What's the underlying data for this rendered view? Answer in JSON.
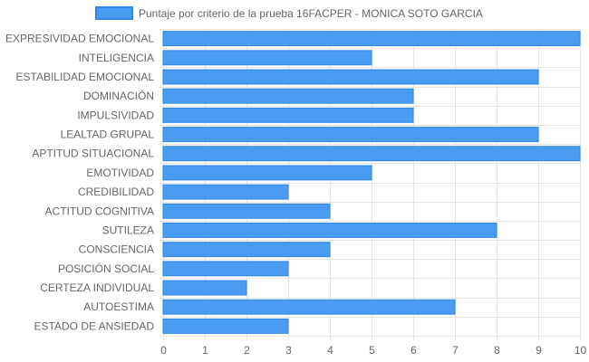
{
  "chart_data": {
    "type": "bar",
    "orientation": "horizontal",
    "categories": [
      "EXPRESIVIDAD EMOCIONAL",
      "INTELIGENCIA",
      "ESTABILIDAD EMOCIONAL",
      "DOMINACIÓN",
      "IMPULSIVIDAD",
      "LEALTAD GRUPAL",
      "APTITUD SITUACIONAL",
      "EMOTIVIDAD",
      "CREDIBILIDAD",
      "ACTITUD COGNITIVA",
      "SUTILEZA",
      "CONSCIENCIA",
      "POSICIÓN SOCIAL",
      "CERTEZA INDIVIDUAL",
      "AUTOESTIMA",
      "ESTADO DE ANSIEDAD"
    ],
    "series": [
      {
        "name": "Puntaje por criterio de la prueba 16FACPER - MONICA SOTO GARCIA",
        "values": [
          10,
          5,
          9,
          6,
          6,
          9,
          10,
          5,
          3,
          4,
          8,
          4,
          3,
          2,
          7,
          3
        ]
      }
    ],
    "xlim": [
      0,
      10
    ],
    "x_ticks": [
      "0",
      "1",
      "2",
      "3",
      "4",
      "5",
      "6",
      "7",
      "8",
      "9",
      "10"
    ],
    "legend_position": "top",
    "grid": true,
    "colors": {
      "bar_fill": "#4a9cf0",
      "bar_stroke": "#2f86e6",
      "grid": "#e6e6e6",
      "text": "#666666"
    }
  }
}
